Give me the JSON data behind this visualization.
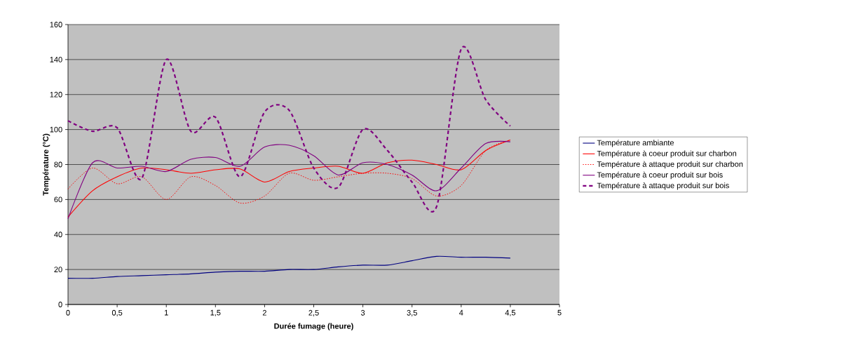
{
  "chart_data": {
    "type": "line",
    "xlabel": "Durée fumage (heure)",
    "ylabel": "Température (°C)",
    "x": [
      0,
      0.25,
      0.5,
      0.75,
      1,
      1.25,
      1.5,
      1.75,
      2,
      2.25,
      2.5,
      2.75,
      3,
      3.25,
      3.5,
      3.75,
      4,
      4.25,
      4.5
    ],
    "series": [
      {
        "name": "Température ambiante",
        "color": "#000080",
        "line_style": "solid",
        "values": [
          15,
          15,
          16,
          16.5,
          17,
          17.5,
          18.5,
          19,
          19,
          20,
          20,
          21.5,
          22.5,
          22.5,
          25,
          27.5,
          27,
          27,
          26.5
        ]
      },
      {
        "name": "Température à coeur produit sur charbon",
        "color": "#ff0000",
        "line_style": "solid",
        "values": [
          50,
          65,
          73,
          78,
          77,
          75,
          77,
          77.5,
          70,
          76,
          78,
          79,
          75,
          81,
          82.5,
          80,
          77,
          88,
          94
        ]
      },
      {
        "name": "Température à attaque produit sur charbon",
        "color": "#ff0000",
        "line_style": "dotted",
        "values": [
          66,
          78,
          69,
          73,
          60,
          73,
          68,
          58,
          62,
          75,
          71,
          73,
          75,
          75,
          72,
          62,
          68,
          88,
          94
        ]
      },
      {
        "name": "Température à coeur produit sur bois",
        "color": "#800080",
        "line_style": "solid",
        "values": [
          49,
          81,
          78,
          79,
          76,
          83,
          84,
          79,
          90,
          91,
          85,
          74,
          81,
          80,
          74,
          65,
          78,
          92,
          93
        ]
      },
      {
        "name": "Température à attaque produit sur bois",
        "color": "#800080",
        "line_style": "dashed",
        "values": [
          105,
          99,
          101,
          72,
          140,
          99,
          107,
          73,
          110,
          111,
          78,
          67,
          100,
          88,
          70,
          56,
          146,
          117,
          102
        ]
      }
    ],
    "xlim": [
      0,
      5
    ],
    "ylim": [
      0,
      160
    ],
    "xticks": [
      0,
      {
        "value": 0.5,
        "label": "0,5"
      },
      1,
      {
        "value": 1.5,
        "label": "1,5"
      },
      2,
      {
        "value": 2.5,
        "label": "2,5"
      },
      3,
      {
        "value": 3.5,
        "label": "3,5"
      },
      4,
      {
        "value": 4.5,
        "label": "4,5"
      },
      5
    ],
    "yticks": [
      0,
      20,
      40,
      60,
      80,
      100,
      120,
      140,
      160
    ],
    "grid": "y",
    "legend": "right",
    "marker": "none"
  }
}
